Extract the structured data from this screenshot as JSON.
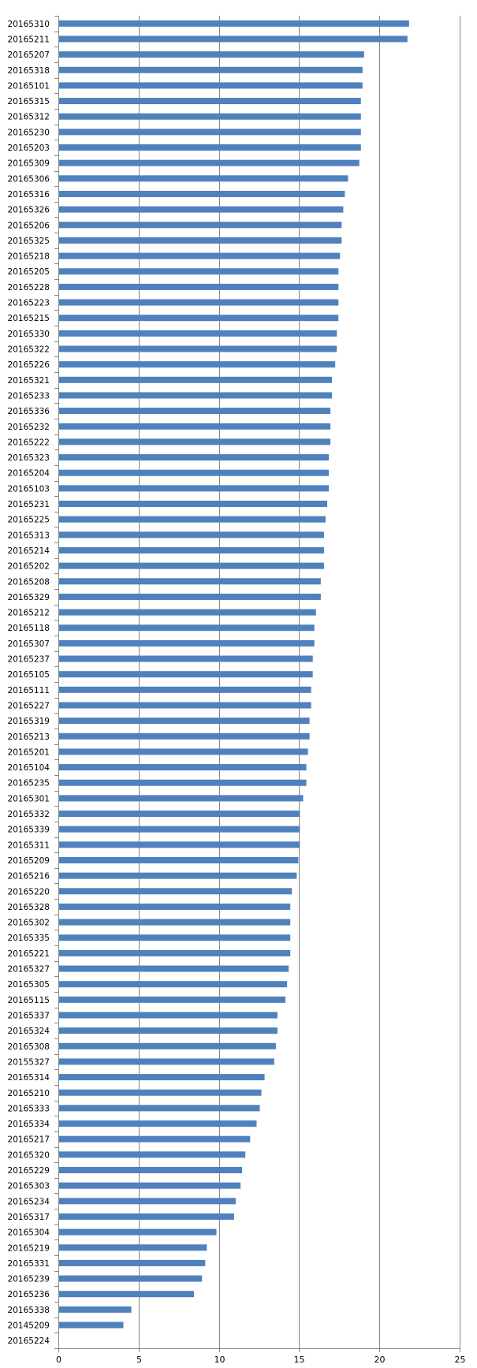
{
  "chart_data": {
    "type": "bar",
    "orientation": "horizontal",
    "title": "",
    "xlabel": "",
    "ylabel": "",
    "xlim": [
      0,
      25
    ],
    "x_ticks": [
      "0",
      "5",
      "10",
      "15",
      "20",
      "25"
    ],
    "grid": "vertical",
    "legend": "none",
    "bar_color": "#4F81BD",
    "categories": [
      "20165310",
      "20165211",
      "20165207",
      "20165318",
      "20165101",
      "20165315",
      "20165312",
      "20165230",
      "20165203",
      "20165309",
      "20165306",
      "20165316",
      "20165326",
      "20165206",
      "20165325",
      "20165218",
      "20165205",
      "20165228",
      "20165223",
      "20165215",
      "20165330",
      "20165322",
      "20165226",
      "20165321",
      "20165233",
      "20165336",
      "20165232",
      "20165222",
      "20165323",
      "20165204",
      "20165103",
      "20165231",
      "20165225",
      "20165313",
      "20165214",
      "20165202",
      "20165208",
      "20165329",
      "20165212",
      "20165118",
      "20165307",
      "20165237",
      "20165105",
      "20165111",
      "20165227",
      "20165319",
      "20165213",
      "20165201",
      "20165104",
      "20165235",
      "20165301",
      "20165332",
      "20165339",
      "20165311",
      "20165209",
      "20165216",
      "20165220",
      "20165328",
      "20165302",
      "20165335",
      "20165221",
      "20165327",
      "20165305",
      "20165115",
      "20165337",
      "20165324",
      "20165308",
      "20155327",
      "20165314",
      "20165210",
      "20165333",
      "20165334",
      "20165217",
      "20165320",
      "20165229",
      "20165303",
      "20165234",
      "20165317",
      "20165304",
      "20165219",
      "20165331",
      "20165239",
      "20165236",
      "20165338",
      "20145209",
      "20165224"
    ],
    "values": [
      21.8,
      21.7,
      19.0,
      18.9,
      18.9,
      18.8,
      18.8,
      18.8,
      18.8,
      18.7,
      18.0,
      17.8,
      17.7,
      17.6,
      17.6,
      17.5,
      17.4,
      17.4,
      17.4,
      17.4,
      17.3,
      17.3,
      17.2,
      17.0,
      17.0,
      16.9,
      16.9,
      16.9,
      16.8,
      16.8,
      16.8,
      16.7,
      16.6,
      16.5,
      16.5,
      16.5,
      16.3,
      16.3,
      16.0,
      15.9,
      15.9,
      15.8,
      15.8,
      15.7,
      15.7,
      15.6,
      15.6,
      15.5,
      15.4,
      15.4,
      15.2,
      15.0,
      15.0,
      15.0,
      14.9,
      14.8,
      14.5,
      14.4,
      14.4,
      14.4,
      14.4,
      14.3,
      14.2,
      14.1,
      13.6,
      13.6,
      13.5,
      13.4,
      12.8,
      12.6,
      12.5,
      12.3,
      11.9,
      11.6,
      11.4,
      11.3,
      11.0,
      10.9,
      9.8,
      9.2,
      9.1,
      8.9,
      8.4,
      4.5,
      4.0,
      0
    ]
  }
}
